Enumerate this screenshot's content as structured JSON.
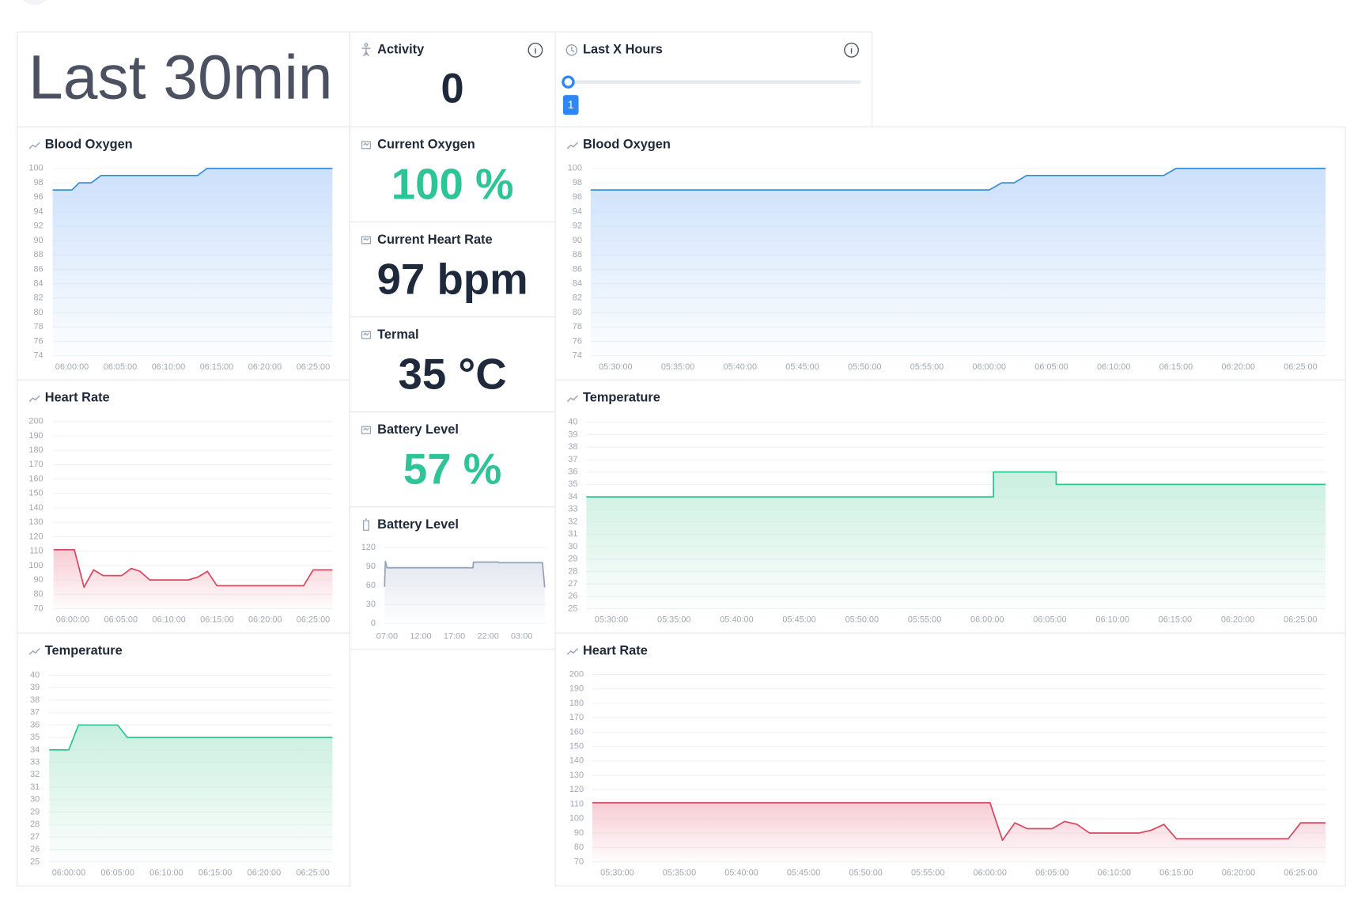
{
  "header": {
    "title": "Last 30min"
  },
  "activity": {
    "label": "Activity",
    "value": "0"
  },
  "slider": {
    "label": "Last X Hours",
    "value": "1"
  },
  "stats": [
    {
      "label": "Current Oxygen",
      "value": "100 %",
      "color": "#2ec497"
    },
    {
      "label": "Current Heart Rate",
      "value": "97 bpm",
      "color": "#1e293b"
    },
    {
      "label": "Termal",
      "value": "35 °C",
      "color": "#1e293b"
    },
    {
      "label": "Battery Level",
      "value": "57 %",
      "color": "#2ec497"
    }
  ],
  "charts": [
    {
      "type": "line",
      "title": "Blood Oxygen",
      "color": "#3b8fd9",
      "fill": "#c9dffb",
      "grid": true,
      "x": [
        "05:58:00",
        "06:00:00",
        "06:00:45",
        "06:02:00",
        "06:03:00",
        "06:13:00",
        "06:14:00",
        "06:27:00"
      ],
      "values": [
        97,
        97,
        98,
        98,
        99,
        99,
        100,
        100
      ],
      "xlim": [
        "05:58:00",
        "06:27:00"
      ],
      "xticks": [
        "06:00:00",
        "06:05:00",
        "06:10:00",
        "06:15:00",
        "06:20:00",
        "06:25:00"
      ],
      "ylim": [
        74,
        100
      ],
      "yticks": [
        74,
        76,
        78,
        80,
        82,
        84,
        86,
        88,
        90,
        92,
        94,
        96,
        98,
        100
      ]
    },
    {
      "type": "line",
      "title": "Heart Rate",
      "color": "#d9485f",
      "fill": "#f6c9d1",
      "grid": true,
      "x": [
        "05:58:00",
        "06:00:10",
        "06:01:10",
        "06:02:10",
        "06:03:10",
        "06:05:05",
        "06:06:05",
        "06:07:00",
        "06:08:00",
        "06:12:00",
        "06:13:00",
        "06:14:00",
        "06:15:00",
        "06:24:00",
        "06:25:00",
        "06:27:00"
      ],
      "values": [
        111,
        111,
        85,
        97,
        93,
        93,
        98,
        96,
        90,
        90,
        92,
        96,
        86,
        86,
        97,
        97
      ],
      "xlim": [
        "05:58:00",
        "06:27:00"
      ],
      "xticks": [
        "06:00:00",
        "06:05:00",
        "06:10:00",
        "06:15:00",
        "06:20:00",
        "06:25:00"
      ],
      "ylim": [
        70,
        200
      ],
      "yticks": [
        70,
        80,
        90,
        100,
        110,
        120,
        130,
        140,
        150,
        160,
        170,
        180,
        190,
        200
      ]
    },
    {
      "type": "line",
      "title": "Temperature",
      "color": "#2ec497",
      "fill": "#c6eedd",
      "grid": true,
      "x": [
        "05:58:00",
        "06:00:00",
        "06:01:00",
        "06:05:00",
        "06:06:00",
        "06:27:00"
      ],
      "values": [
        34,
        34,
        36,
        36,
        35,
        35
      ],
      "xlim": [
        "05:58:00",
        "06:27:00"
      ],
      "xticks": [
        "06:00:00",
        "06:05:00",
        "06:10:00",
        "06:15:00",
        "06:20:00",
        "06:25:00"
      ],
      "ylim": [
        25,
        40
      ],
      "yticks": [
        25,
        26,
        27,
        28,
        29,
        30,
        31,
        32,
        33,
        34,
        35,
        36,
        37,
        38,
        39,
        40
      ]
    },
    {
      "type": "line",
      "title": "Battery Level",
      "color": "#94a3b8",
      "fill": "#e2e6ee",
      "grid": true,
      "x": [
        "06:37",
        "06:45",
        "07:00",
        "19:45",
        "19:50",
        "23:30",
        "23:35",
        "06:05",
        "06:25"
      ],
      "values": [
        58,
        98,
        88,
        88,
        97,
        97,
        96,
        96,
        57
      ],
      "xlim": [
        "06:35",
        "06:34"
      ],
      "xticks": [
        "07:00",
        "12:00",
        "17:00",
        "22:00",
        "03:00"
      ],
      "ylim": [
        0,
        120
      ],
      "yticks": [
        0,
        30,
        60,
        90,
        120
      ]
    },
    {
      "type": "line",
      "title": "Blood Oxygen",
      "color": "#3b8fd9",
      "fill": "#c9dffb",
      "grid": true,
      "x": [
        "05:28:00",
        "06:00:00",
        "06:01:00",
        "06:02:00",
        "06:03:00",
        "06:14:00",
        "06:15:00",
        "06:27:00"
      ],
      "values": [
        97,
        97,
        98,
        98,
        99,
        99,
        100,
        100
      ],
      "xlim": [
        "05:28:00",
        "06:27:00"
      ],
      "xticks": [
        "05:30:00",
        "05:35:00",
        "05:40:00",
        "05:45:00",
        "05:50:00",
        "05:55:00",
        "06:00:00",
        "06:05:00",
        "06:10:00",
        "06:15:00",
        "06:20:00",
        "06:25:00"
      ],
      "ylim": [
        74,
        100
      ],
      "yticks": [
        74,
        76,
        78,
        80,
        82,
        84,
        86,
        88,
        90,
        92,
        94,
        96,
        98,
        100
      ]
    },
    {
      "type": "line",
      "title": "Temperature",
      "color": "#2ec497",
      "fill": "#c6eedd",
      "grid": true,
      "x": [
        "05:28:00",
        "06:00:30",
        "06:00:30",
        "06:05:30",
        "06:05:30",
        "06:27:00"
      ],
      "values": [
        34,
        34,
        36,
        36,
        35,
        35
      ],
      "xlim": [
        "05:28:00",
        "06:27:00"
      ],
      "xticks": [
        "05:30:00",
        "05:35:00",
        "05:40:00",
        "05:45:00",
        "05:50:00",
        "05:55:00",
        "06:00:00",
        "06:05:00",
        "06:10:00",
        "06:15:00",
        "06:20:00",
        "06:25:00"
      ],
      "ylim": [
        25,
        40
      ],
      "yticks": [
        25,
        26,
        27,
        28,
        29,
        30,
        31,
        32,
        33,
        34,
        35,
        36,
        37,
        38,
        39,
        40
      ]
    },
    {
      "type": "line",
      "title": "Heart Rate",
      "color": "#d9485f",
      "fill": "#f6c9d1",
      "grid": true,
      "x": [
        "05:28:00",
        "06:00:00",
        "06:01:00",
        "06:02:00",
        "06:03:00",
        "06:05:00",
        "06:06:00",
        "06:07:00",
        "06:08:00",
        "06:12:00",
        "06:13:00",
        "06:14:00",
        "06:15:00",
        "06:24:00",
        "06:25:00",
        "06:27:00"
      ],
      "values": [
        111,
        111,
        85,
        97,
        93,
        93,
        98,
        96,
        90,
        90,
        92,
        96,
        86,
        86,
        97,
        97
      ],
      "xlim": [
        "05:28:00",
        "06:27:00"
      ],
      "xticks": [
        "05:30:00",
        "05:35:00",
        "05:40:00",
        "05:45:00",
        "05:50:00",
        "05:55:00",
        "06:00:00",
        "06:05:00",
        "06:10:00",
        "06:15:00",
        "06:20:00",
        "06:25:00"
      ],
      "ylim": [
        70,
        200
      ],
      "yticks": [
        70,
        80,
        90,
        100,
        110,
        120,
        130,
        140,
        150,
        160,
        170,
        180,
        190,
        200
      ]
    }
  ]
}
